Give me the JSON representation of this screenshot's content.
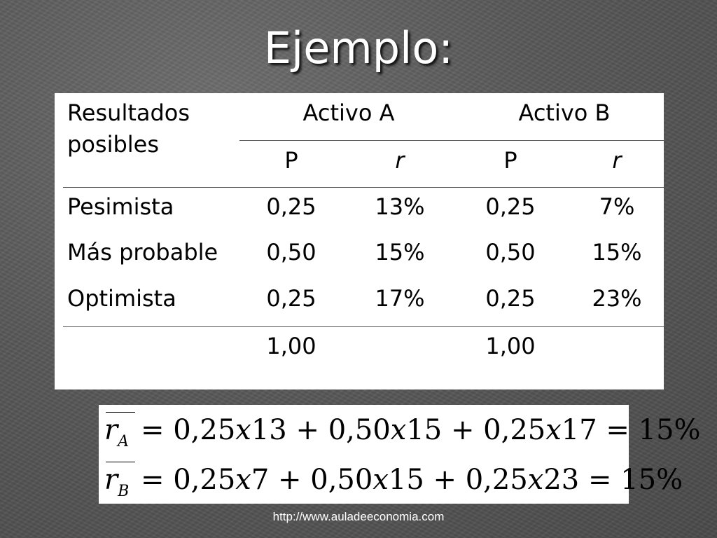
{
  "slide": {
    "title": "Ejemplo:"
  },
  "table": {
    "header": {
      "outcomes_label": [
        "Resultados",
        "posibles"
      ],
      "asset_a": "Activo A",
      "asset_b": "Activo B",
      "p_label": "P",
      "r_label": "r"
    },
    "rows": [
      {
        "label": "Pesimista",
        "pa": "0,25",
        "ra": "13%",
        "pb": "0,25",
        "rb": "7%"
      },
      {
        "label": "Más probable",
        "pa": "0,50",
        "ra": "15%",
        "pb": "0,50",
        "rb": "15%"
      },
      {
        "label": "Optimista",
        "pa": "0,25",
        "ra": "17%",
        "pb": "0,25",
        "rb": "23%"
      }
    ],
    "totals": {
      "pa": "1,00",
      "pb": "1,00"
    }
  },
  "formulas": {
    "a": {
      "var": "r",
      "sub": "A",
      "terms": [
        "= 0,25",
        "x",
        "13 + 0,50",
        "x",
        "15 + 0,25",
        "x",
        "17 = 15%"
      ]
    },
    "b": {
      "var": "r",
      "sub": "B",
      "terms": [
        "= 0,25",
        "x",
        "7 + 0,50",
        "x",
        "15 + 0,25",
        "x",
        "23 = 15%"
      ]
    }
  },
  "footer": {
    "url": "http://www.auladeeconomia.com"
  }
}
